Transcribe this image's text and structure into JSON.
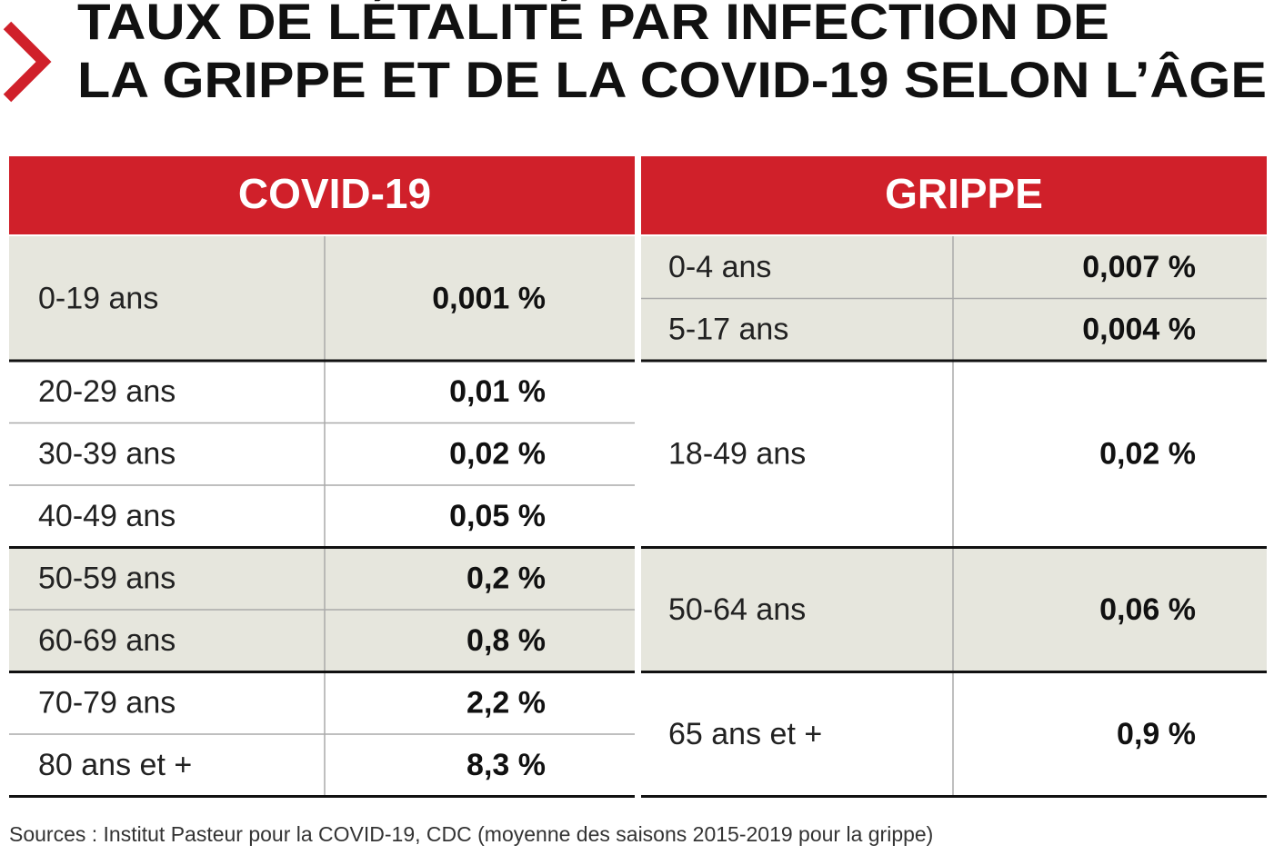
{
  "title": [
    "TAUX DE LÉTALITÉ PAR INFECTION DE",
    "LA GRIPPE ET DE LA COVID-19 SELON L’ÂGE"
  ],
  "table": {
    "covid": {
      "header": "COVID-19",
      "rows": [
        [
          "0-19 ans",
          "0,001 %"
        ],
        [
          "20-29 ans",
          "0,01 %"
        ],
        [
          "30-39 ans",
          "0,02 %"
        ],
        [
          "40-49 ans",
          "0,05 %"
        ],
        [
          "50-59 ans",
          "0,2 %"
        ],
        [
          "60-69 ans",
          "0,8 %"
        ],
        [
          "70-79 ans",
          "2,2 %"
        ],
        [
          "80 ans et +",
          "8,3 %"
        ]
      ]
    },
    "grippe": {
      "header": "GRIPPE",
      "rows": [
        [
          "0-4 ans",
          "0,007 %"
        ],
        [
          "5-17 ans",
          "0,004 %"
        ],
        [
          "18-49 ans",
          "0,02 %"
        ],
        [
          "50-64 ans",
          "0,06 %"
        ],
        [
          "65 ans et +",
          "0,9 %"
        ]
      ]
    }
  },
  "source": "Sources : Institut Pasteur pour la COVID-19, CDC (moyenne des saisons 2015-2019 pour la grippe)"
}
